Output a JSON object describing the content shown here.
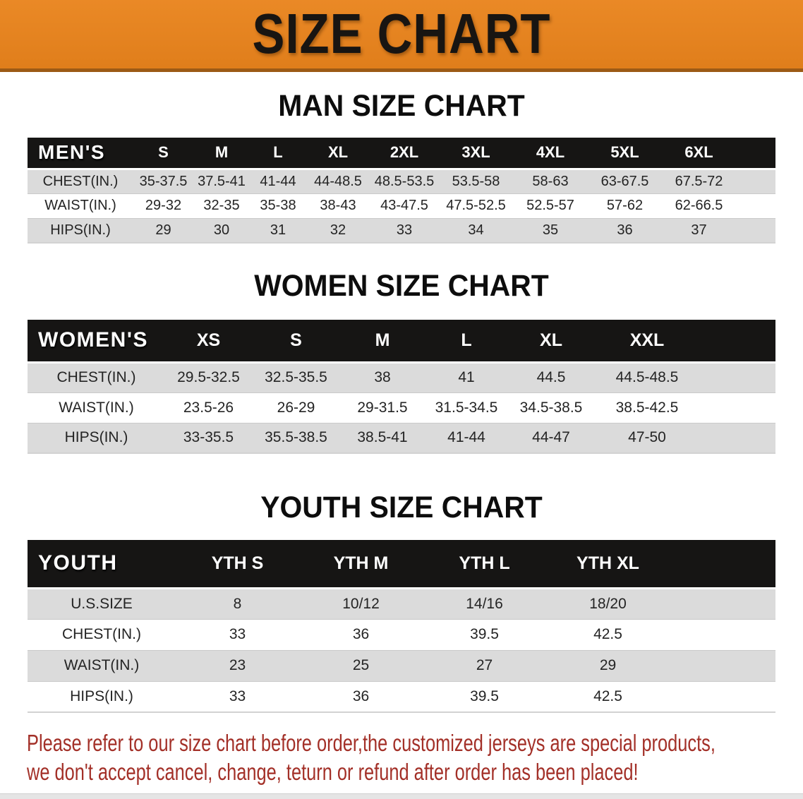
{
  "banner": {
    "title": "SIZE CHART",
    "bg_color": "#EA8926",
    "edge_color": "#9C5A15"
  },
  "chart_data": [
    {
      "type": "table",
      "title": "MAN SIZE CHART",
      "corner_label": "MEN'S",
      "columns": [
        "S",
        "M",
        "L",
        "XL",
        "2XL",
        "3XL",
        "4XL",
        "5XL",
        "6XL"
      ],
      "rows": [
        {
          "label": "CHEST(IN.)",
          "values": [
            "35-37.5",
            "37.5-41",
            "41-44",
            "44-48.5",
            "48.5-53.5",
            "53.5-58",
            "58-63",
            "63-67.5",
            "67.5-72"
          ]
        },
        {
          "label": "WAIST(IN.)",
          "values": [
            "29-32",
            "32-35",
            "35-38",
            "38-43",
            "43-47.5",
            "47.5-52.5",
            "52.5-57",
            "57-62",
            "62-66.5"
          ]
        },
        {
          "label": "HIPS(IN.)",
          "values": [
            "29",
            "30",
            "31",
            "32",
            "33",
            "34",
            "35",
            "36",
            "37"
          ]
        }
      ]
    },
    {
      "type": "table",
      "title": "WOMEN SIZE CHART",
      "corner_label": "WOMEN'S",
      "columns": [
        "XS",
        "S",
        "M",
        "L",
        "XL",
        "XXL"
      ],
      "rows": [
        {
          "label": "CHEST(IN.)",
          "values": [
            "29.5-32.5",
            "32.5-35.5",
            "38",
            "41",
            "44.5",
            "44.5-48.5"
          ]
        },
        {
          "label": "WAIST(IN.)",
          "values": [
            "23.5-26",
            "26-29",
            "29-31.5",
            "31.5-34.5",
            "34.5-38.5",
            "38.5-42.5"
          ]
        },
        {
          "label": "HIPS(IN.)",
          "values": [
            "33-35.5",
            "35.5-38.5",
            "38.5-41",
            "41-44",
            "44-47",
            "47-50"
          ]
        }
      ]
    },
    {
      "type": "table",
      "title": "YOUTH SIZE CHART",
      "corner_label": "YOUTH",
      "columns": [
        "YTH S",
        "YTH M",
        "YTH L",
        "YTH XL"
      ],
      "rows": [
        {
          "label": "U.S.SIZE",
          "values": [
            "8",
            "10/12",
            "14/16",
            "18/20"
          ]
        },
        {
          "label": "CHEST(IN.)",
          "values": [
            "33",
            "36",
            "39.5",
            "42.5"
          ]
        },
        {
          "label": "WAIST(IN.)",
          "values": [
            "23",
            "25",
            "27",
            "29"
          ]
        },
        {
          "label": "HIPS(IN.)",
          "values": [
            "33",
            "36",
            "39.5",
            "42.5"
          ]
        }
      ]
    }
  ],
  "disclaimer": {
    "line1": "Please refer to our size chart before order,the customized jerseys are special products,",
    "line2": "we don't accept cancel, change, teturn or refund after order has been placed!",
    "text_color": "#A33028"
  },
  "colors": {
    "header_bar": "#161514",
    "shaded_row": "#DBDBDB"
  }
}
